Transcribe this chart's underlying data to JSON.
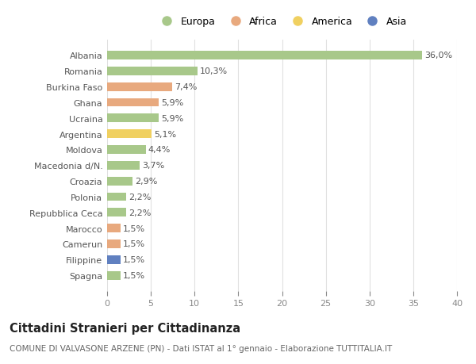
{
  "countries": [
    "Albania",
    "Romania",
    "Burkina Faso",
    "Ghana",
    "Ucraina",
    "Argentina",
    "Moldova",
    "Macedonia d/N.",
    "Croazia",
    "Polonia",
    "Repubblica Ceca",
    "Marocco",
    "Camerun",
    "Filippine",
    "Spagna"
  ],
  "values": [
    36.0,
    10.3,
    7.4,
    5.9,
    5.9,
    5.1,
    4.4,
    3.7,
    2.9,
    2.2,
    2.2,
    1.5,
    1.5,
    1.5,
    1.5
  ],
  "labels": [
    "36,0%",
    "10,3%",
    "7,4%",
    "5,9%",
    "5,9%",
    "5,1%",
    "4,4%",
    "3,7%",
    "2,9%",
    "2,2%",
    "2,2%",
    "1,5%",
    "1,5%",
    "1,5%",
    "1,5%"
  ],
  "continents": [
    "Europa",
    "Europa",
    "Africa",
    "Africa",
    "Europa",
    "America",
    "Europa",
    "Europa",
    "Europa",
    "Europa",
    "Europa",
    "Africa",
    "Africa",
    "Asia",
    "Europa"
  ],
  "colors": {
    "Europa": "#a8c88a",
    "Africa": "#e8a97e",
    "America": "#f0d060",
    "Asia": "#6080c0"
  },
  "legend_order": [
    "Europa",
    "Africa",
    "America",
    "Asia"
  ],
  "title": "Cittadini Stranieri per Cittadinanza",
  "subtitle": "COMUNE DI VALVASONE ARZENE (PN) - Dati ISTAT al 1° gennaio - Elaborazione TUTTITALIA.IT",
  "xlim": [
    0,
    40
  ],
  "xticks": [
    0,
    5,
    10,
    15,
    20,
    25,
    30,
    35,
    40
  ],
  "bg_color": "#ffffff",
  "grid_color": "#e0e0e0",
  "bar_height": 0.55,
  "label_fontsize": 8,
  "tick_fontsize": 8,
  "title_fontsize": 10.5,
  "subtitle_fontsize": 7.5
}
